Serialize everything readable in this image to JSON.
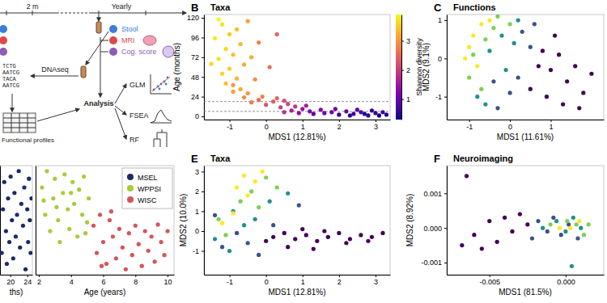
{
  "diagram": {
    "timeline": [
      "2 m",
      "Yearly"
    ],
    "samples": [
      {
        "label": "Stool",
        "color": "#3b7dd8"
      },
      {
        "label": "MRI",
        "color": "#e0474c"
      },
      {
        "label": "Cog. score",
        "color": "#8e5bb5"
      }
    ],
    "sequencing": "DNAseq",
    "reads": [
      "TCTG",
      "AATCG",
      "TACA",
      "AATCG"
    ],
    "profiles": "Functional profiles",
    "analysis": "Analysis",
    "methods": [
      "GLM",
      "FSEA",
      "RF"
    ]
  },
  "chart_data": [
    {
      "panel": "B",
      "type": "scatter",
      "title": "Taxa",
      "x_label": "MDS1 (12.81%)",
      "y_label": "Age (months)",
      "xlim": [
        -1.7,
        3.4
      ],
      "xticks": [
        -1,
        0,
        1,
        2,
        3
      ],
      "ylim": [
        -4,
        124
      ],
      "yticks": [
        0,
        24,
        48,
        72,
        96,
        120
      ],
      "reference_lines": [
        18,
        6
      ],
      "x": [
        3.3,
        3.0,
        2.8,
        2.6,
        2.4,
        2.2,
        2.0,
        1.8,
        1.6,
        1.5,
        1.3,
        1.2,
        1.0,
        0.9,
        0.7,
        0.5,
        2.9,
        3.1,
        2.5,
        1.9,
        0.8,
        0.6,
        0.4,
        0.2,
        0.0,
        -0.2,
        -0.4,
        0.3,
        -0.6,
        1.1,
        -0.1,
        0.5,
        -0.5,
        -0.7,
        -0.9,
        -1.1,
        -0.8,
        -1.2,
        -1.0,
        -0.6,
        -1.3,
        -0.9,
        -1.1,
        -0.7,
        -1.4,
        -1.0,
        -0.8,
        -1.2,
        -0.5,
        -1.3,
        -0.3,
        -0.2,
        0.1,
        -1.5,
        -0.4,
        0.3,
        -0.9,
        2.7,
        3.2,
        2.3
      ],
      "values": [
        2,
        4,
        1,
        5,
        3,
        6,
        2,
        5,
        4,
        8,
        3,
        6,
        9,
        4,
        7,
        5,
        7,
        1,
        8,
        9,
        12,
        15,
        11,
        18,
        14,
        20,
        17,
        22,
        23,
        13,
        24,
        19,
        28,
        33,
        30,
        40,
        46,
        52,
        58,
        63,
        70,
        75,
        82,
        88,
        95,
        100,
        106,
        112,
        116,
        118,
        45,
        90,
        60,
        64,
        72,
        100,
        38,
        3,
        5,
        1
      ],
      "color_values": [
        0.4,
        0.6,
        0.5,
        0.8,
        0.7,
        0.9,
        0.6,
        1.0,
        1.1,
        1.3,
        0.9,
        1.2,
        1.5,
        1.4,
        1.6,
        1.8,
        0.5,
        0.3,
        0.9,
        1.1,
        1.9,
        2.1,
        2.0,
        2.4,
        2.3,
        2.6,
        2.7,
        2.5,
        2.9,
        1.6,
        2.8,
        2.2,
        3.0,
        3.2,
        3.1,
        3.4,
        3.3,
        3.6,
        3.5,
        3.2,
        3.7,
        3.4,
        3.6,
        3.3,
        3.8,
        3.5,
        3.4,
        3.7,
        3.1,
        3.9,
        2.9,
        2.8,
        2.6,
        3.6,
        3.2,
        2.5,
        3.0,
        0.4,
        0.6,
        0.5
      ],
      "colorbar": {
        "label": "Shannon diversity",
        "range": [
          0.3,
          3.9
        ],
        "ticks": [
          1,
          2,
          3
        ]
      }
    },
    {
      "panel": "C",
      "type": "scatter",
      "title": "Functions",
      "x_label": "MDS1 (11.61%)",
      "y_label": "MDS2 (9.1%)",
      "xlim": [
        -1.55,
        2.3
      ],
      "xticks": [
        -1,
        0,
        1
      ],
      "ylim": [
        -1.6,
        1.15
      ],
      "yticks": [
        -1,
        0,
        1
      ],
      "series": [
        {
          "color": "#440154",
          "x": [
            0.8,
            1.0,
            1.2,
            1.4,
            1.6,
            1.8,
            2.0,
            0.9,
            1.3,
            0.5,
            1.1,
            1.7,
            0.7
          ],
          "values": [
            0.2,
            -0.3,
            0.1,
            -0.6,
            -0.2,
            -0.9,
            -0.4,
            -1.0,
            -1.2,
            -0.8,
            0.6,
            -1.3,
            -0.2
          ]
        },
        {
          "color": "#3b528b",
          "x": [
            -0.3,
            0.3,
            0.0,
            0.5,
            0.2,
            0.6,
            -0.4
          ],
          "values": [
            -1.3,
            0.7,
            -0.9,
            0.3,
            -0.5,
            0.9,
            -0.6
          ]
        },
        {
          "color": "#21918c",
          "x": [
            -0.8,
            -0.5,
            -0.2,
            -0.6,
            0.2,
            -0.1,
            0.1
          ],
          "values": [
            -1.0,
            0.2,
            0.6,
            -1.2,
            1.0,
            -0.3,
            0.4
          ]
        },
        {
          "color": "#7ad151",
          "x": [
            -0.9,
            -0.6,
            -0.4,
            -1.0,
            -0.3,
            -0.7,
            0.0
          ],
          "values": [
            0.1,
            0.5,
            0.8,
            -0.5,
            1.1,
            -0.8,
            0.9
          ]
        },
        {
          "color": "#fde725",
          "x": [
            -1.0,
            -0.9,
            -0.7,
            -0.8,
            -0.5,
            -1.1
          ],
          "values": [
            0.3,
            0.6,
            0.9,
            -0.2,
            1.0,
            0.0
          ]
        }
      ]
    },
    {
      "type": "scatter",
      "x_label": "Age (years)",
      "xlim": [
        1.8,
        10.4
      ],
      "xticks": [
        2,
        4,
        6,
        8,
        10
      ],
      "x2_label": "ths)",
      "x2lim": [
        17.6,
        25.2
      ],
      "x2ticks": [
        20,
        24
      ],
      "ylim": [
        0,
        100
      ],
      "tick_labels": "x",
      "legend": "top-right",
      "series": [
        {
          "name": "MSEL",
          "color": "#1c2a6b",
          "axis": "x2",
          "x": [
            18,
            18.3,
            18.6,
            19,
            19.2,
            19.5,
            19.8,
            20.1,
            20.4,
            20.7,
            21,
            21.3,
            21.6,
            22,
            22.3,
            22.6,
            23,
            23.3,
            23.6,
            24,
            24.2,
            24.4,
            24.6,
            24.8,
            25
          ],
          "values": [
            20,
            60,
            85,
            40,
            10,
            70,
            30,
            90,
            50,
            15,
            75,
            35,
            55,
            95,
            25,
            65,
            45,
            80,
            5,
            60,
            30,
            88,
            50,
            20,
            70
          ]
        },
        {
          "name": "WPPSI",
          "color": "#a6cc3a",
          "x": [
            2.2,
            2.4,
            2.5,
            2.7,
            2.9,
            3.0,
            3.2,
            3.3,
            3.5,
            3.6,
            3.8,
            3.9,
            4.1,
            4.2,
            4.4,
            4.5,
            4.7,
            4.8,
            5.0,
            5.1,
            2.3,
            3.1,
            4.0,
            4.9
          ],
          "values": [
            80,
            55,
            95,
            40,
            70,
            88,
            50,
            30,
            75,
            92,
            60,
            42,
            85,
            65,
            35,
            78,
            55,
            90,
            48,
            70,
            68,
            62,
            75,
            38
          ]
        },
        {
          "name": "WISC",
          "color": "#d6545a",
          "x": [
            5.4,
            5.6,
            5.8,
            6.0,
            6.2,
            6.4,
            6.6,
            6.8,
            7.0,
            7.2,
            7.4,
            7.6,
            7.8,
            8.0,
            8.2,
            8.4,
            8.6,
            8.8,
            9.0,
            9.2,
            9.4,
            9.6,
            9.8,
            10.0,
            5.9,
            6.5
          ],
          "values": [
            45,
            20,
            55,
            30,
            10,
            50,
            35,
            15,
            42,
            25,
            5,
            38,
            18,
            45,
            28,
            8,
            40,
            22,
            35,
            12,
            46,
            30,
            18,
            40,
            8,
            58
          ]
        }
      ]
    },
    {
      "panel": "E",
      "type": "scatter",
      "title": "Taxa",
      "x_label": "MDS1 (12.81%)",
      "y_label": "MDS2 (10.0%)",
      "xlim": [
        -1.7,
        3.4
      ],
      "xticks": [
        -1,
        0,
        1,
        2,
        3
      ],
      "ylim": [
        -2.2,
        3.3
      ],
      "yticks": [
        -1,
        0,
        1,
        2,
        3
      ],
      "series": [
        {
          "color": "#440154",
          "x": [
            0.2,
            0.5,
            0.8,
            1.1,
            1.4,
            1.7,
            2.0,
            2.3,
            2.6,
            2.9,
            3.2,
            1.0,
            1.6,
            2.2,
            0.6,
            2.8,
            0.0,
            1.3
          ],
          "values": [
            -0.3,
            -0.1,
            -0.4,
            -0.2,
            -0.5,
            -0.3,
            -0.1,
            -0.4,
            -0.2,
            -0.3,
            -0.1,
            0.1,
            0.0,
            -0.6,
            -0.8,
            -0.5,
            -0.5,
            -0.9
          ]
        },
        {
          "color": "#3b528b",
          "x": [
            -1.2,
            -0.8,
            -0.5,
            -1.4,
            0.2,
            -0.2,
            0.9
          ],
          "values": [
            -0.8,
            -0.1,
            -0.6,
            0.8,
            0.3,
            -1.2,
            1.3
          ]
        },
        {
          "color": "#21918c",
          "x": [
            -0.9,
            -0.6,
            -1.4,
            -1.0,
            0.1,
            -0.3,
            0.6
          ],
          "values": [
            1.0,
            0.3,
            -0.4,
            -1.0,
            1.5,
            0.6,
            1.9
          ]
        },
        {
          "color": "#7ad151",
          "x": [
            -0.4,
            -0.7,
            0.0,
            -1.1,
            -0.2,
            -1.3,
            0.3
          ],
          "values": [
            2.0,
            1.5,
            2.7,
            -0.2,
            1.2,
            0.6,
            2.2
          ]
        },
        {
          "color": "#fde725",
          "x": [
            -0.6,
            -0.3,
            -0.8,
            -0.1,
            -0.5,
            -1.2,
            -0.9
          ],
          "values": [
            2.8,
            2.5,
            2.2,
            3.0,
            1.8,
            0.4,
            0.9
          ]
        }
      ]
    },
    {
      "panel": "F",
      "type": "scatter",
      "title": "Neuroimaging",
      "x_label": "MDS1 (81.5%)",
      "y_label": "MDS2 (8.92%)",
      "xlim": [
        -0.0078,
        0.0025
      ],
      "xticks": [
        -0.005,
        {
          "value": 0,
          "label": "0.000"
        }
      ],
      "ylim": [
        -0.00135,
        0.0018
      ],
      "yticks": [
        -0.001,
        {
          "value": 0,
          "label": "0.000"
        },
        0.001
      ],
      "series": [
        {
          "color": "#440154",
          "x": [
            -0.0068,
            -0.0065,
            -0.006,
            -0.0055,
            -0.005,
            -0.0045,
            -0.004,
            -0.0035,
            -0.003,
            -0.0025
          ],
          "values": [
            -0.0005,
            0.0015,
            -0.0002,
            -0.0006,
            0.0002,
            -0.0004,
            0.0003,
            -0.0001,
            0.0004,
            0.0001
          ]
        },
        {
          "color": "#3b528b",
          "x": [
            -0.0022,
            -0.0018,
            -0.0012,
            -0.0008,
            -0.0003,
            0.0002,
            0.0008
          ],
          "values": [
            -0.0003,
            0.0002,
            -0.0001,
            0.0003,
            -0.0002,
            0.0001,
            -0.0003
          ]
        },
        {
          "color": "#21918c",
          "x": [
            -0.0015,
            -0.0006,
            0,
            0.0005,
            0.001,
            0.0004
          ],
          "values": [
            0,
            0.0002,
            -0.0001,
            0.0003,
            0,
            -0.0011
          ]
        },
        {
          "color": "#7ad151",
          "x": [
            -0.001,
            0.0001,
            0.0007,
            0.0012,
            0.0015
          ],
          "values": [
            0.0001,
            0.0002,
            0.0001,
            -0.0002,
            0.0001
          ]
        },
        {
          "color": "#fde725",
          "x": [
            -0.0004,
            0.0003,
            0.0009
          ],
          "values": [
            0,
            0,
            0.0002
          ]
        }
      ]
    }
  ]
}
